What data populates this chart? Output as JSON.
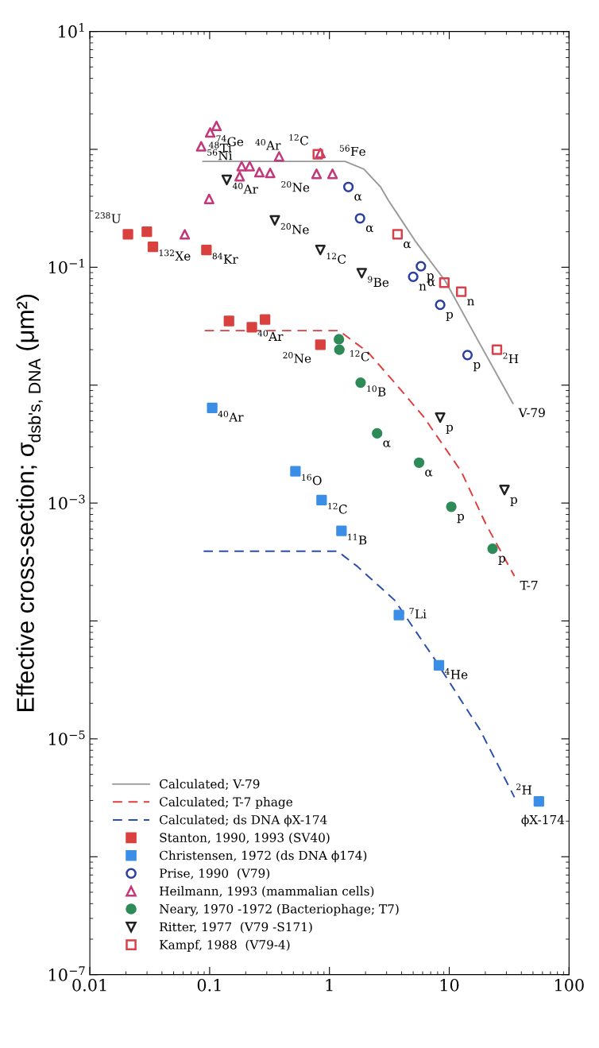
{
  "chart_data": {
    "type": "scatter",
    "ylabel": "Effective cross-section; σ$_{dsb's, DNA}$ (μm²)",
    "xlim": [
      0.01,
      100
    ],
    "ylim": [
      1e-07,
      10
    ],
    "log": "xy",
    "grid": false,
    "legend": "bottom left",
    "xticks": [
      0.01,
      0.1,
      1,
      10,
      100
    ],
    "yticks": [
      {
        "value": 10,
        "label": "10$^{1}$"
      },
      {
        "value": 1,
        "label": null
      },
      {
        "value": 0.1,
        "label": "10$^{−1}$"
      },
      {
        "value": 0.01,
        "label": null
      },
      {
        "value": 0.001,
        "label": "10$^{−3}$"
      },
      {
        "value": 0.0001,
        "label": null
      },
      {
        "value": 1e-05,
        "label": "10$^{−5}$"
      },
      {
        "value": 1e-06,
        "label": null
      },
      {
        "value": 1e-07,
        "label": "10$^{−7}$"
      }
    ],
    "series": [
      {
        "name": "Calculated; V-79",
        "type": "line",
        "line_style": "solid",
        "color": "#9a9a9a",
        "x": [
          0.088,
          1.35,
          1.94,
          2.67,
          3.1,
          5.2,
          9.3,
          16.6,
          34
        ],
        "values": [
          0.79,
          0.79,
          0.68,
          0.48,
          0.37,
          0.167,
          0.076,
          0.026,
          0.007
        ]
      },
      {
        "name": "Calculated; T-7 phage",
        "type": "line",
        "line_style": "dashed",
        "color": "#e03c3c",
        "x": [
          0.091,
          1.2,
          2.1,
          3.5,
          6.1,
          12.6,
          20.4,
          35
        ],
        "values": [
          0.029,
          0.029,
          0.019,
          0.0105,
          0.0054,
          0.00185,
          0.00065,
          0.00024
        ]
      },
      {
        "name": "Calculated; ds DNA ϕX-174",
        "type": "line",
        "line_style": "dashed",
        "color": "#2a4db0",
        "x": [
          0.089,
          1.17,
          1.71,
          3.5,
          7.7,
          18,
          35
        ],
        "values": [
          0.00039,
          0.00039,
          0.00029,
          0.00015,
          4.6e-05,
          1.2e-05,
          3.2e-06
        ]
      },
      {
        "name": "Stanton, 1990, 1993 (SV40)",
        "marker": "square",
        "color": "#d9413f",
        "x": [
          0.84,
          0.29,
          0.225,
          0.145,
          0.094,
          0.0336,
          0.0299,
          0.0208
        ],
        "values": [
          0.022,
          0.036,
          0.031,
          0.035,
          0.14,
          0.149,
          0.2,
          0.19
        ]
      },
      {
        "name": "Christensen, 1972 (ds DNA ϕ174)",
        "marker": "square",
        "color": "#3a8ee6",
        "x": [
          56,
          8.2,
          3.8,
          1.26,
          0.86,
          0.52,
          0.105
        ],
        "values": [
          2.95e-06,
          4.2e-05,
          0.000112,
          0.00058,
          0.00106,
          0.00186,
          0.0064
        ]
      },
      {
        "name": "Prise, 1990  (V79)",
        "marker": "circle-open",
        "color": "#2b3fa0",
        "x": [
          14.2,
          8.4,
          5.8,
          5.0,
          1.8,
          1.44
        ],
        "values": [
          0.018,
          0.048,
          0.102,
          0.083,
          0.26,
          0.48
        ]
      },
      {
        "name": "Heilmann, 1993 (mammalian cells)",
        "marker": "triangle-open",
        "color": "#c2387a",
        "x": [
          1.06,
          0.84,
          0.78,
          0.38,
          0.32,
          0.26,
          0.216,
          0.185,
          0.178,
          0.099,
          0.114,
          0.101,
          0.085,
          0.062
        ],
        "values": [
          0.62,
          0.93,
          0.62,
          0.87,
          0.63,
          0.64,
          0.72,
          0.72,
          0.59,
          0.38,
          1.58,
          1.39,
          1.06,
          0.19
        ]
      },
      {
        "name": "Neary, 1970 -1972 (Bacteriophage; T7)",
        "marker": "circle",
        "color": "#2e8b57",
        "x": [
          23,
          10.4,
          5.6,
          2.5,
          1.82,
          1.2,
          1.21
        ],
        "values": [
          0.00041,
          0.00093,
          0.0022,
          0.0039,
          0.0105,
          0.0245,
          0.02
        ]
      },
      {
        "name": "Ritter, 1977  (V79 -S171)",
        "marker": "triangle-down-open",
        "color": "#222222",
        "x": [
          28.9,
          8.4,
          1.86,
          0.84,
          0.35,
          0.139
        ],
        "values": [
          0.00129,
          0.0053,
          0.089,
          0.14,
          0.25,
          0.55
        ]
      },
      {
        "name": "Kampf, 1988  (V79-4)",
        "marker": "square-open",
        "color": "#d9414a",
        "x": [
          25,
          12.6,
          9.1,
          3.7,
          0.8
        ],
        "values": [
          0.02,
          0.062,
          0.074,
          0.19,
          0.91
        ]
      }
    ],
    "annotations": [
      {
        "text": "V-79",
        "x": 34,
        "y": 0.007
      },
      {
        "text": "T-7",
        "x": 35,
        "y": 0.00024
      },
      {
        "text": "ϕX-174",
        "x": 35,
        "y": 3.2e-06
      },
      {
        "text": "$^{2}$H",
        "x": 25,
        "y": 0.02
      },
      {
        "text": "n",
        "x": 12.6,
        "y": 0.062
      },
      {
        "text": "α",
        "x": 9.1,
        "y": 0.074
      },
      {
        "text": "α",
        "x": 3.7,
        "y": 0.19
      },
      {
        "text": "$^{12}$C",
        "x": 0.8,
        "y": 0.91
      },
      {
        "text": "p",
        "x": 14.2,
        "y": 0.018
      },
      {
        "text": "p",
        "x": 8.4,
        "y": 0.048
      },
      {
        "text": "p",
        "x": 5.8,
        "y": 0.102
      },
      {
        "text": "n",
        "x": 5.0,
        "y": 0.083
      },
      {
        "text": "α",
        "x": 1.8,
        "y": 0.26
      },
      {
        "text": "α",
        "x": 1.44,
        "y": 0.48
      },
      {
        "text": "p",
        "x": 28.9,
        "y": 0.00129
      },
      {
        "text": "p",
        "x": 8.4,
        "y": 0.0053
      },
      {
        "text": "$^{9}$Be",
        "x": 1.86,
        "y": 0.089
      },
      {
        "text": "$^{12}$C",
        "x": 0.84,
        "y": 0.14
      },
      {
        "text": "$^{20}$Ne",
        "x": 0.35,
        "y": 0.25
      },
      {
        "text": "$^{40}$Ar",
        "x": 0.139,
        "y": 0.55
      },
      {
        "text": "p",
        "x": 23,
        "y": 0.00041
      },
      {
        "text": "p",
        "x": 10.4,
        "y": 0.00093
      },
      {
        "text": "α",
        "x": 5.6,
        "y": 0.0022
      },
      {
        "text": "α",
        "x": 2.5,
        "y": 0.0039
      },
      {
        "text": "$^{10}$B",
        "x": 1.82,
        "y": 0.0105
      },
      {
        "text": "$^{12}$C",
        "x": 1.21,
        "y": 0.02
      },
      {
        "text": "$^{2}$H",
        "x": 56,
        "y": 2.95e-06
      },
      {
        "text": "$^{4}$He",
        "x": 8.2,
        "y": 4.2e-05
      },
      {
        "text": "$^{7}$Li",
        "x": 3.8,
        "y": 0.000112
      },
      {
        "text": "$^{11}$B",
        "x": 1.26,
        "y": 0.00058
      },
      {
        "text": "$^{12}$C",
        "x": 0.86,
        "y": 0.00106
      },
      {
        "text": "$^{16}$O",
        "x": 0.52,
        "y": 0.00186
      },
      {
        "text": "$^{40}$Ar",
        "x": 0.105,
        "y": 0.0064
      },
      {
        "text": "$^{20}$Ne",
        "x": 0.84,
        "y": 0.022
      },
      {
        "text": "$^{40}$Ar",
        "x": 0.225,
        "y": 0.031
      },
      {
        "text": "$^{84}$Kr",
        "x": 0.094,
        "y": 0.14
      },
      {
        "text": "$^{132}$Xe",
        "x": 0.0336,
        "y": 0.149
      },
      {
        "text": "$^{238}$U",
        "x": 0.0208,
        "y": 0.19
      },
      {
        "text": "$^{56}$Fe",
        "x": 1.06,
        "y": 0.62
      },
      {
        "text": "$^{20}$Ne",
        "x": 0.78,
        "y": 0.62
      },
      {
        "text": "$^{40}$Ar",
        "x": 0.26,
        "y": 0.64
      },
      {
        "text": "$^{48}$Ti",
        "x": 0.185,
        "y": 0.72
      },
      {
        "text": "$^{74}$Ge",
        "x": 0.101,
        "y": 1.39
      },
      {
        "text": "$^{56}$Ni",
        "x": 0.085,
        "y": 1.06
      }
    ]
  }
}
